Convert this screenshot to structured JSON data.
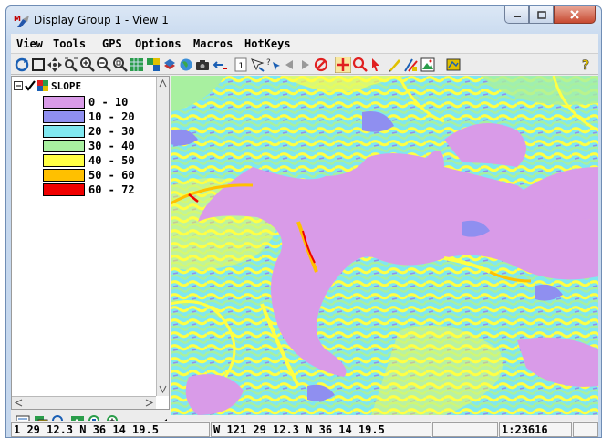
{
  "window": {
    "title": "Display Group 1 - View 1"
  },
  "menu": [
    "View",
    "Tools",
    "GPS",
    "Options",
    "Macros",
    "HotKeys"
  ],
  "toolbar": {
    "icons": [
      "redraw-icon",
      "full-view-icon",
      "pan-icon",
      "zoom-fit-icon",
      "zoom-in-icon",
      "zoom-out-icon",
      "zoom-box-icon",
      "layer-grid-icon",
      "layer-controls-icon",
      "stack-icon",
      "globe-icon",
      "camera-icon",
      "zoom-back-icon",
      "page-icon",
      "select-icon",
      "cursor-query-icon",
      "prev-icon",
      "next-icon",
      "stop-icon",
      "crosshair-icon",
      "magnifier-icon",
      "pointer-icon",
      "edit-icon",
      "sketch-icon",
      "image-icon",
      "map-icon",
      "help-icon"
    ],
    "page_number": "1",
    "help_label": "?"
  },
  "legend": {
    "layer_name": "SLOPE",
    "entries": [
      {
        "label": "0 - 10",
        "color": "#d99be8"
      },
      {
        "label": "10 - 20",
        "color": "#8f8ff0"
      },
      {
        "label": "20 - 30",
        "color": "#80e8f0"
      },
      {
        "label": "30 - 40",
        "color": "#a8f0a0"
      },
      {
        "label": "40 - 50",
        "color": "#ffff44"
      },
      {
        "label": "50 - 60",
        "color": "#ffc000"
      },
      {
        "label": "60 - 72",
        "color": "#f00000"
      }
    ]
  },
  "legend_toolbar": {
    "icons": [
      "legend-list-icon",
      "layer-copy-icon",
      "zoom-layer-icon",
      "layer-manager-icon",
      "zoom-region-icon",
      "zoom-in-layer-icon",
      "scroll-left-icon"
    ]
  },
  "status": {
    "coord_left": "1 29 12.3  N 36 14 19.5",
    "coord_right": "W 121 29 12.3  N 36 14 19.5",
    "blank": "",
    "scale": "1:23616"
  }
}
